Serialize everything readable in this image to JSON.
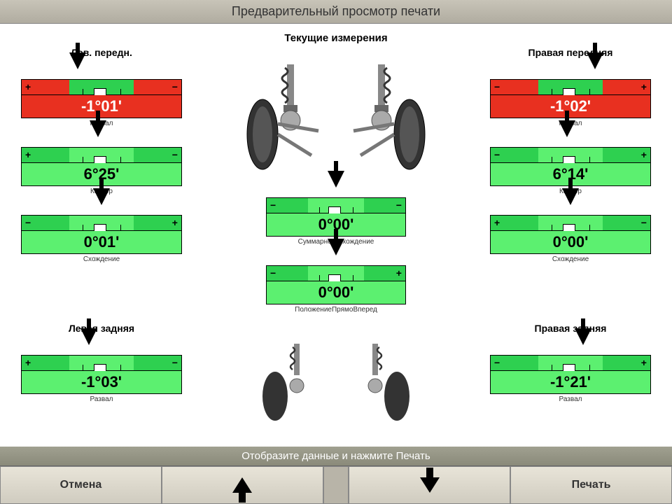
{
  "window_title": "Предварительный просмотр печати",
  "page_title": "Текущие измерения",
  "status_text": "Отобразите данные и нажмите Печать",
  "buttons": {
    "cancel": "Отмена",
    "print": "Печать"
  },
  "colors": {
    "red": "#e83020",
    "green": "#2ed050",
    "green_light": "#5cf070",
    "white": "#ffffff",
    "black": "#000000"
  },
  "front": {
    "left_heading": "Лев. передн.",
    "right_heading": "Правая передняя",
    "left": {
      "camber": {
        "value": "-1°01'",
        "label": "Развал",
        "status": "red",
        "arrow_pct": 35,
        "notch_pct": 48,
        "left_sign": "+",
        "right_sign": "−"
      },
      "caster": {
        "value": "6°25'",
        "label": "Кастер",
        "status": "green",
        "arrow_pct": 48,
        "notch_pct": 48,
        "left_sign": "+",
        "right_sign": "−"
      },
      "toe": {
        "value": "0°01'",
        "label": "Схождение",
        "status": "green",
        "arrow_pct": 50,
        "notch_pct": 48,
        "left_sign": "−",
        "right_sign": "+"
      }
    },
    "right": {
      "camber": {
        "value": "-1°02'",
        "label": "Развал",
        "status": "red",
        "arrow_pct": 65,
        "notch_pct": 48,
        "left_sign": "−",
        "right_sign": "+"
      },
      "caster": {
        "value": "6°14'",
        "label": "Кастер",
        "status": "green",
        "arrow_pct": 48,
        "notch_pct": 48,
        "left_sign": "−",
        "right_sign": "+"
      },
      "toe": {
        "value": "0°00'",
        "label": "Схождение",
        "status": "green",
        "arrow_pct": 50,
        "notch_pct": 48,
        "left_sign": "+",
        "right_sign": "−"
      }
    },
    "center": {
      "total_toe": {
        "value": "0°00'",
        "label": "Суммарное Схождение",
        "status": "green",
        "arrow_pct": 50,
        "notch_pct": 48,
        "left_sign": "−",
        "right_sign": "−"
      },
      "thrust": {
        "value": "0°00'",
        "label": "ПоложениеПрямоВперед",
        "status": "green",
        "arrow_pct": 50,
        "notch_pct": 48,
        "left_sign": "−",
        "right_sign": "+"
      }
    }
  },
  "rear": {
    "left_heading": "Левая задняя",
    "right_heading": "Правая задняя",
    "left": {
      "camber": {
        "value": "-1°03'",
        "label": "Развал",
        "status": "green",
        "arrow_pct": 42,
        "notch_pct": 48,
        "left_sign": "+",
        "right_sign": "−"
      }
    },
    "right": {
      "camber": {
        "value": "-1°21'",
        "label": "Развал",
        "status": "green",
        "arrow_pct": 58,
        "notch_pct": 48,
        "left_sign": "−",
        "right_sign": "+"
      }
    }
  }
}
